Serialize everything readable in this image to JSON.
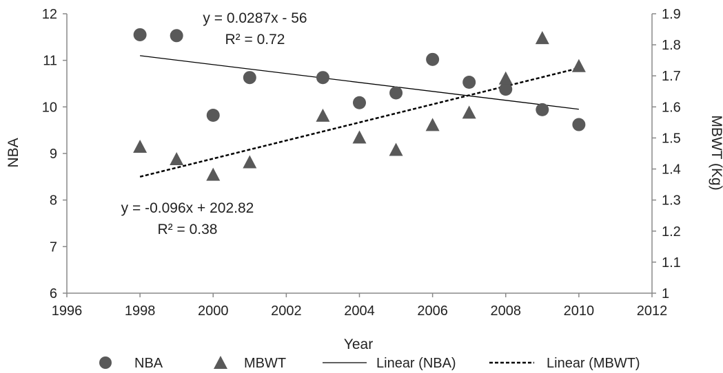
{
  "chart_data": {
    "type": "scatter",
    "xlabel": "Year",
    "ylabel_left": "NBA",
    "ylabel_right": "MBWT (Kg)",
    "xlim": [
      1996,
      2012
    ],
    "ylim_left": [
      6,
      12
    ],
    "ylim_right": [
      1,
      1.9
    ],
    "x_ticks": [
      "1996",
      "1998",
      "2000",
      "2002",
      "2004",
      "2006",
      "2008",
      "2010",
      "2012"
    ],
    "y_left_ticks": [
      "6",
      "7",
      "8",
      "9",
      "10",
      "11",
      "12"
    ],
    "y_right_ticks": [
      "1",
      "1.1",
      "1.2",
      "1.3",
      "1.4",
      "1.5",
      "1.6",
      "1.7",
      "1.8",
      "1.9"
    ],
    "grid": false,
    "legend_position": "bottom",
    "colors": {
      "marker": "#595959",
      "line": "#000000",
      "axis": "#888888"
    },
    "series": [
      {
        "name": "NBA",
        "axis": "left",
        "marker": "circle",
        "x": [
          1998,
          1999,
          2000,
          2001,
          2003,
          2004,
          2005,
          2006,
          2007,
          2008,
          2009,
          2010
        ],
        "y": [
          11.55,
          11.53,
          9.82,
          10.63,
          10.63,
          10.09,
          10.3,
          11.02,
          10.53,
          10.38,
          9.94,
          9.62
        ]
      },
      {
        "name": "MBWT",
        "axis": "right",
        "marker": "triangle",
        "x": [
          1998,
          1999,
          2000,
          2001,
          2003,
          2004,
          2005,
          2006,
          2007,
          2008,
          2009,
          2010
        ],
        "y": [
          1.47,
          1.43,
          1.38,
          1.42,
          1.57,
          1.5,
          1.46,
          1.54,
          1.58,
          1.69,
          1.82,
          1.73
        ]
      }
    ],
    "trendlines": [
      {
        "name": "Linear (NBA)",
        "axis": "left",
        "style": "solid",
        "x": [
          1998,
          2010
        ],
        "y": [
          11.1,
          9.95
        ]
      },
      {
        "name": "Linear (MBWT)",
        "axis": "right",
        "style": "dashed",
        "x": [
          1998,
          2010
        ],
        "y": [
          1.375,
          1.725
        ]
      }
    ],
    "annotations": {
      "mbwt_eq": "y = 0.0287x - 56",
      "mbwt_r2": "R² = 0.72",
      "nba_eq": "y = -0.096x + 202.82",
      "nba_r2": "R² = 0.38"
    },
    "legend": [
      "NBA",
      "MBWT",
      "Linear (NBA)",
      "Linear (MBWT)"
    ]
  }
}
